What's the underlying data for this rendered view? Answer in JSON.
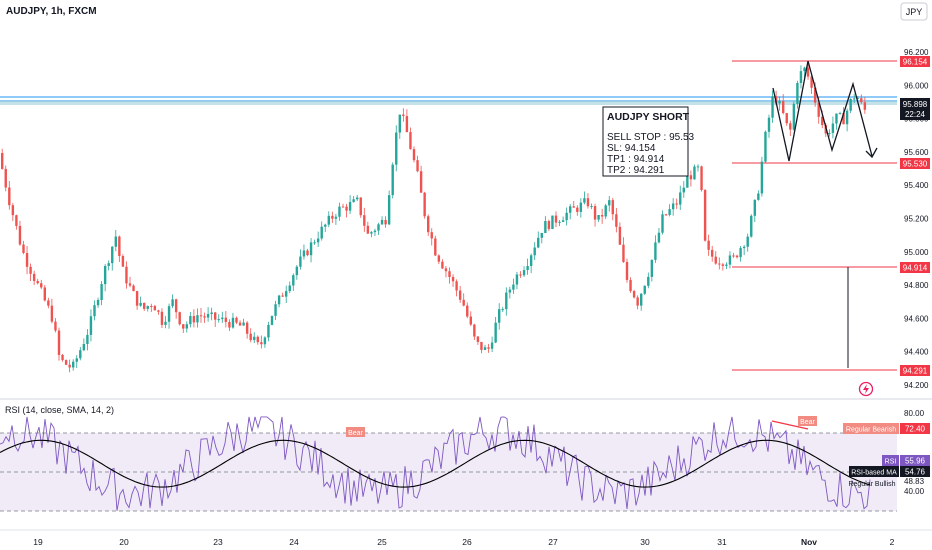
{
  "header": {
    "symbol_title": "AUDJPY, 1h, FXCM",
    "currency_badge": "JPY"
  },
  "price_axis": {
    "ticks": [
      "96.200",
      "96.000",
      "95.800",
      "95.600",
      "95.400",
      "95.200",
      "95.000",
      "94.800",
      "94.600",
      "94.400",
      "94.200"
    ]
  },
  "price_tags": {
    "resistance": "96.154",
    "last_price": "95.898",
    "countdown": "22:24",
    "entry": "95.530",
    "tp1": "94.914",
    "tp2": "94.291"
  },
  "trade_box": {
    "title": "AUDJPY SHORT",
    "sell_stop": "SELL STOP : 95.53",
    "sl": "SL: 94.154",
    "tp1": "TP1 : 94.914",
    "tp2": "TP2 : 94.291"
  },
  "rsi_panel": {
    "title": "RSI (14, close, SMA, 14, 2)",
    "axis_ticks": [
      "80.00",
      "60.00",
      "48.83",
      "40.00"
    ],
    "upper_tag": "72.40",
    "regular_bearish_label": "Regular Bearish",
    "rsi_label": "RSI",
    "rsi_value": "55.96",
    "ma_label": "RSI-based MA",
    "ma_value": "54.76",
    "regular_bullish_label": "Regular Bullish",
    "bear_label": "Bear",
    "bear_label_2": "Bear"
  },
  "time_axis": [
    "19",
    "20",
    "23",
    "24",
    "25",
    "26",
    "27",
    "30",
    "31",
    "Nov",
    "2"
  ],
  "colors": {
    "bull": "#26a69a",
    "bear": "#ef5350",
    "grid_text": "#131722",
    "level_line": "#f23645",
    "rsi_line": "#7e57c2",
    "ma_line": "#000000",
    "rsi_band": "#ede7f6",
    "zone_line": "#2196f3"
  },
  "chart_data": {
    "type": "candlestick",
    "symbol": "AUDJPY",
    "timeframe": "1h",
    "ylim": [
      94.2,
      96.2
    ],
    "x": [
      "19",
      "20",
      "23",
      "24",
      "25",
      "26",
      "27",
      "30",
      "31",
      "Nov",
      "2"
    ],
    "levels": {
      "resistance": 96.154,
      "entry": 95.53,
      "tp1": 94.914,
      "tp2": 94.291
    },
    "anchors": [
      [
        0,
        95.62
      ],
      [
        12,
        95.3
      ],
      [
        25,
        95.0
      ],
      [
        40,
        94.8
      ],
      [
        55,
        94.6
      ],
      [
        62,
        94.35
      ],
      [
        75,
        94.3
      ],
      [
        92,
        94.55
      ],
      [
        105,
        94.85
      ],
      [
        118,
        95.1
      ],
      [
        124,
        94.9
      ],
      [
        135,
        94.75
      ],
      [
        145,
        94.65
      ],
      [
        155,
        94.7
      ],
      [
        165,
        94.58
      ],
      [
        175,
        94.7
      ],
      [
        185,
        94.55
      ],
      [
        200,
        94.62
      ],
      [
        215,
        94.6
      ],
      [
        230,
        94.58
      ],
      [
        245,
        94.55
      ],
      [
        262,
        94.42
      ],
      [
        272,
        94.6
      ],
      [
        285,
        94.75
      ],
      [
        300,
        94.92
      ],
      [
        320,
        95.1
      ],
      [
        340,
        95.25
      ],
      [
        360,
        95.3
      ],
      [
        370,
        95.1
      ],
      [
        388,
        95.2
      ],
      [
        395,
        95.55
      ],
      [
        402,
        95.85
      ],
      [
        410,
        95.7
      ],
      [
        420,
        95.45
      ],
      [
        428,
        95.2
      ],
      [
        438,
        95.0
      ],
      [
        452,
        94.85
      ],
      [
        465,
        94.7
      ],
      [
        478,
        94.45
      ],
      [
        490,
        94.4
      ],
      [
        500,
        94.6
      ],
      [
        515,
        94.82
      ],
      [
        530,
        94.95
      ],
      [
        545,
        95.15
      ],
      [
        560,
        95.2
      ],
      [
        575,
        95.25
      ],
      [
        590,
        95.3
      ],
      [
        600,
        95.18
      ],
      [
        612,
        95.3
      ],
      [
        620,
        95.1
      ],
      [
        628,
        94.85
      ],
      [
        640,
        94.7
      ],
      [
        652,
        94.9
      ],
      [
        665,
        95.2
      ],
      [
        680,
        95.3
      ],
      [
        690,
        95.45
      ],
      [
        702,
        95.5
      ],
      [
        708,
        95.0
      ],
      [
        720,
        94.95
      ],
      [
        735,
        94.95
      ],
      [
        750,
        95.1
      ],
      [
        760,
        95.35
      ],
      [
        768,
        95.7
      ],
      [
        776,
        95.95
      ],
      [
        784,
        95.85
      ],
      [
        792,
        95.7
      ],
      [
        800,
        96.05
      ],
      [
        808,
        96.1
      ],
      [
        818,
        95.9
      ],
      [
        828,
        95.7
      ],
      [
        838,
        95.8
      ],
      [
        846,
        95.8
      ],
      [
        853,
        95.9
      ],
      [
        858,
        95.95
      ],
      [
        866,
        95.85
      ]
    ],
    "rsi_ylim": [
      20,
      80
    ],
    "rsi_value": 55.96,
    "rsi_ma_value": 54.76
  }
}
